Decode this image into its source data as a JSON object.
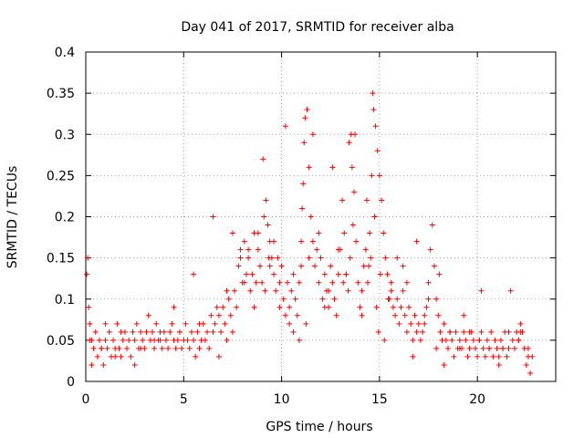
{
  "chart_data": {
    "type": "scatter",
    "title": "Day 041 of 2017, SRMTID for receiver alba",
    "xlabel": "GPS time / hours",
    "ylabel": "SRMTID / TECUs",
    "xlim": [
      0,
      24
    ],
    "ylim": [
      0,
      0.4
    ],
    "xticks": [
      0,
      5,
      10,
      15,
      20
    ],
    "xtick_labels": [
      "0",
      "5",
      "10",
      "15",
      "20"
    ],
    "yticks": [
      0,
      0.05,
      0.1,
      0.15,
      0.2,
      0.25,
      0.3,
      0.35,
      0.4
    ],
    "ytick_labels": [
      "0",
      "0.05",
      "0.1",
      "0.15",
      "0.2",
      "0.25",
      "0.3",
      "0.35",
      "0.4"
    ],
    "grid": true,
    "marker": "+",
    "color": "#ff0000",
    "series": [
      {
        "name": "alba",
        "x": [
          0.05,
          0.1,
          0.15,
          0.2,
          0.3,
          0.4,
          0.5,
          0.6,
          0.7,
          0.8,
          0.9,
          1.0,
          1.1,
          1.2,
          1.3,
          1.4,
          1.5,
          1.6,
          1.7,
          1.8,
          1.9,
          2.0,
          2.1,
          2.2,
          2.3,
          2.4,
          2.5,
          2.6,
          2.7,
          2.8,
          2.9,
          3.0,
          3.1,
          3.2,
          3.3,
          3.4,
          3.5,
          3.6,
          3.7,
          3.8,
          3.9,
          4.0,
          4.1,
          4.2,
          4.3,
          4.4,
          4.5,
          4.6,
          4.7,
          4.8,
          4.9,
          5.0,
          5.1,
          5.2,
          5.3,
          5.4,
          5.5,
          5.6,
          5.7,
          5.8,
          5.9,
          6.0,
          6.1,
          6.2,
          6.3,
          6.4,
          6.5,
          6.6,
          6.7,
          6.8,
          6.9,
          7.0,
          7.1,
          7.2,
          7.3,
          7.4,
          7.5,
          7.6,
          7.7,
          7.8,
          7.9,
          8.0,
          8.1,
          8.2,
          8.3,
          8.4,
          8.5,
          8.6,
          8.7,
          8.8,
          8.9,
          9.0,
          9.05,
          9.1,
          9.2,
          9.3,
          9.4,
          9.5,
          9.6,
          9.7,
          9.8,
          9.9,
          10.0,
          10.1,
          10.2,
          10.3,
          10.4,
          10.5,
          10.6,
          10.7,
          10.8,
          10.9,
          11.0,
          11.05,
          11.1,
          11.15,
          11.2,
          11.3,
          11.4,
          11.5,
          11.6,
          11.7,
          11.8,
          11.9,
          12.0,
          12.1,
          12.2,
          12.3,
          12.4,
          12.5,
          12.6,
          12.7,
          12.8,
          12.9,
          13.0,
          13.1,
          13.2,
          13.3,
          13.4,
          13.5,
          13.55,
          13.6,
          13.7,
          13.8,
          13.9,
          14.0,
          14.1,
          14.2,
          14.3,
          14.4,
          14.5,
          14.6,
          14.65,
          14.7,
          14.8,
          14.9,
          15.0,
          15.1,
          15.2,
          15.3,
          15.4,
          15.5,
          15.6,
          15.7,
          15.8,
          15.9,
          16.0,
          16.1,
          16.2,
          16.3,
          16.4,
          16.5,
          16.6,
          16.7,
          16.8,
          16.9,
          17.0,
          17.1,
          17.2,
          17.3,
          17.4,
          17.5,
          17.6,
          17.7,
          17.8,
          17.9,
          18.0,
          18.1,
          18.2,
          18.3,
          18.4,
          18.5,
          18.6,
          18.7,
          18.8,
          18.9,
          19.0,
          19.1,
          19.2,
          19.3,
          19.4,
          19.5,
          19.6,
          19.7,
          19.8,
          19.9,
          20.0,
          20.1,
          20.2,
          20.3,
          20.4,
          20.5,
          20.6,
          20.7,
          20.8,
          20.9,
          21.0,
          21.1,
          21.2,
          21.3,
          21.4,
          21.5,
          21.6,
          21.7,
          21.8,
          21.9,
          22.0,
          22.1,
          22.2,
          22.3,
          22.4,
          22.5,
          22.6,
          22.7,
          22.8,
          0.3,
          0.8,
          1.5,
          2.5,
          3.5,
          4.5,
          5.5,
          6.5,
          7.5,
          8.3,
          8.8,
          9.15,
          9.35,
          9.6,
          10.2,
          10.6,
          11.0,
          11.25,
          11.6,
          12.2,
          12.6,
          13.15,
          13.45,
          13.75,
          14.35,
          14.55,
          14.75,
          14.85,
          15.05,
          15.25,
          15.6,
          16.2,
          16.7,
          17.3,
          17.9,
          18.3,
          19.3,
          20.2,
          21.3,
          22.2,
          0.2,
          1.0,
          1.8,
          2.8,
          3.8,
          4.8,
          5.8,
          6.8,
          7.2,
          7.9,
          8.1,
          8.6,
          9.4,
          9.9,
          10.4,
          10.9,
          11.4,
          11.9,
          12.4,
          12.9,
          13.3,
          13.65,
          14.1,
          14.45,
          14.95,
          15.45,
          15.9,
          16.4,
          16.9,
          17.5,
          18.05,
          18.6,
          19.1,
          19.6,
          20.1,
          20.6,
          21.1,
          21.6,
          22.1,
          22.6
        ],
        "y": [
          0.13,
          0.15,
          0.09,
          0.07,
          0.05,
          0.04,
          0.06,
          0.03,
          0.05,
          0.04,
          0.02,
          0.05,
          0.04,
          0.06,
          0.03,
          0.05,
          0.04,
          0.07,
          0.04,
          0.03,
          0.05,
          0.06,
          0.04,
          0.05,
          0.03,
          0.06,
          0.05,
          0.07,
          0.04,
          0.06,
          0.05,
          0.04,
          0.06,
          0.08,
          0.05,
          0.06,
          0.04,
          0.07,
          0.05,
          0.06,
          0.04,
          0.06,
          0.05,
          0.04,
          0.06,
          0.07,
          0.05,
          0.04,
          0.05,
          0.06,
          0.04,
          0.05,
          0.07,
          0.05,
          0.04,
          0.06,
          0.05,
          0.03,
          0.06,
          0.04,
          0.05,
          0.07,
          0.05,
          0.06,
          0.04,
          0.08,
          0.06,
          0.07,
          0.09,
          0.08,
          0.06,
          0.09,
          0.07,
          0.05,
          0.1,
          0.08,
          0.06,
          0.11,
          0.09,
          0.14,
          0.16,
          0.12,
          0.17,
          0.13,
          0.15,
          0.11,
          0.13,
          0.09,
          0.12,
          0.16,
          0.14,
          0.12,
          0.27,
          0.2,
          0.22,
          0.19,
          0.17,
          0.15,
          0.13,
          0.11,
          0.15,
          0.12,
          0.14,
          0.1,
          0.08,
          0.12,
          0.09,
          0.11,
          0.13,
          0.1,
          0.08,
          0.12,
          0.14,
          0.21,
          0.24,
          0.29,
          0.32,
          0.33,
          0.26,
          0.2,
          0.17,
          0.14,
          0.16,
          0.12,
          0.15,
          0.1,
          0.13,
          0.11,
          0.09,
          0.14,
          0.12,
          0.1,
          0.08,
          0.13,
          0.16,
          0.22,
          0.18,
          0.13,
          0.11,
          0.15,
          0.3,
          0.26,
          0.23,
          0.17,
          0.12,
          0.09,
          0.11,
          0.14,
          0.16,
          0.12,
          0.18,
          0.25,
          0.35,
          0.33,
          0.31,
          0.28,
          0.25,
          0.22,
          0.18,
          0.15,
          0.13,
          0.1,
          0.12,
          0.09,
          0.08,
          0.1,
          0.07,
          0.09,
          0.11,
          0.08,
          0.06,
          0.09,
          0.07,
          0.05,
          0.08,
          0.06,
          0.07,
          0.05,
          0.06,
          0.08,
          0.09,
          0.12,
          0.16,
          0.19,
          0.14,
          0.1,
          0.08,
          0.06,
          0.05,
          0.07,
          0.05,
          0.04,
          0.06,
          0.05,
          0.03,
          0.06,
          0.04,
          0.05,
          0.04,
          0.06,
          0.05,
          0.03,
          0.04,
          0.06,
          0.05,
          0.04,
          0.03,
          0.05,
          0.06,
          0.04,
          0.03,
          0.05,
          0.04,
          0.06,
          0.03,
          0.05,
          0.04,
          0.02,
          0.05,
          0.04,
          0.06,
          0.03,
          0.04,
          0.11,
          0.05,
          0.04,
          0.06,
          0.05,
          0.07,
          0.06,
          0.04,
          0.02,
          0.03,
          0.01,
          0.03,
          0.02,
          0.04,
          0.03,
          0.02,
          0.05,
          0.09,
          0.13,
          0.2,
          0.18,
          0.16,
          0.18,
          0.11,
          0.15,
          0.17,
          0.31,
          0.06,
          0.17,
          0.07,
          0.3,
          0.09,
          0.26,
          0.12,
          0.29,
          0.3,
          0.22,
          0.15,
          0.2,
          0.09,
          0.13,
          0.05,
          0.11,
          0.14,
          0.03,
          0.07,
          0.04,
          0.02,
          0.08,
          0.11,
          0.04,
          0.06,
          0.05,
          0.07,
          0.06,
          0.04,
          0.05,
          0.06,
          0.07,
          0.03,
          0.11,
          0.15,
          0.12,
          0.18,
          0.14,
          0.09,
          0.07,
          0.05,
          0.15,
          0.18,
          0.11,
          0.16,
          0.13,
          0.19,
          0.08,
          0.14,
          0.06,
          0.1,
          0.15,
          0.12,
          0.17,
          0.1,
          0.13,
          0.06,
          0.04,
          0.06,
          0.05,
          0.04,
          0.03,
          0.06,
          0.05,
          0.04
        ]
      }
    ]
  }
}
